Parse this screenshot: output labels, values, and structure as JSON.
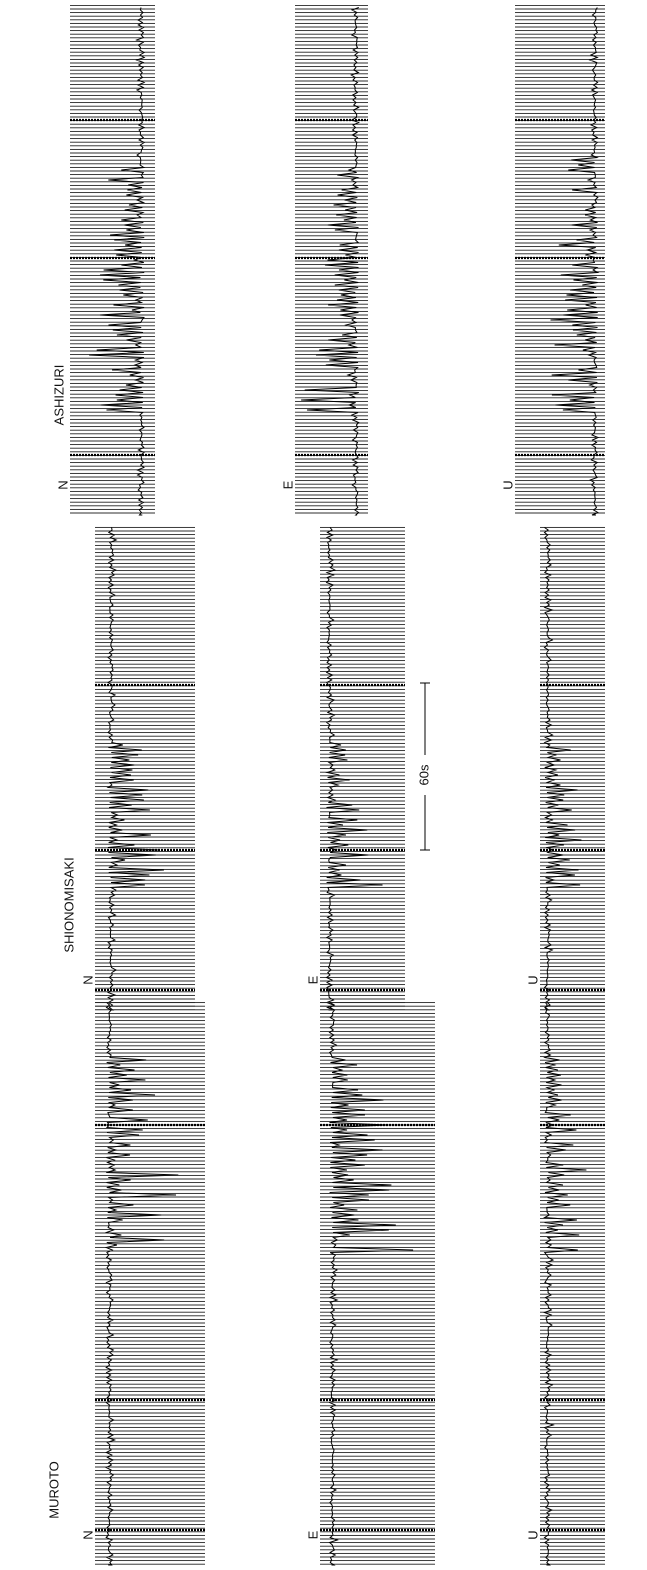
{
  "stations": [
    {
      "name": "ASHIZURI",
      "components": [
        "N",
        "E",
        "U"
      ]
    },
    {
      "name": "SHIONOMISAKI",
      "components": [
        "N",
        "E",
        "U"
      ]
    },
    {
      "name": "MUROTO",
      "components": [
        "N",
        "E",
        "U"
      ]
    }
  ],
  "scale_label": "60s"
}
